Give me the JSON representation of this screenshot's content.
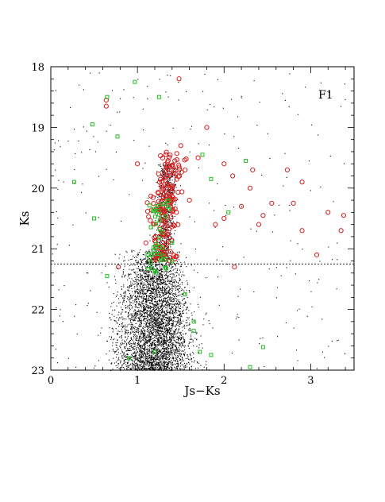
{
  "chart_data": {
    "type": "scatter",
    "title": "",
    "panel_label": "F1",
    "xlabel": "Js−Ks",
    "ylabel": "Ks",
    "xlim": [
      0,
      3.5
    ],
    "ylim": [
      23,
      18
    ],
    "y_inverted": true,
    "x_ticks": [
      0,
      1,
      2,
      3
    ],
    "y_ticks": [
      18,
      19,
      20,
      21,
      22,
      23
    ],
    "x_tick_labels": [
      "0",
      "1",
      "2",
      "3"
    ],
    "y_tick_labels": [
      "18",
      "19",
      "20",
      "21",
      "22",
      "23"
    ],
    "grid": false,
    "legend": "none",
    "reference_line": {
      "style": "dotted",
      "y": 21.25
    },
    "colors": {
      "field_stars": "#000000",
      "red_circles": "#d42020",
      "green_squares": "#22c022",
      "axes": "#000000"
    },
    "series": [
      {
        "marker": "dot",
        "color": "#000000",
        "description_from_plot": "dense cloud of black points centered near Js-Ks 1.2, Ks 22, spread roughly Js-Ks 0.1 to 2.5 and Ks 21 to 23, plus a narrow plume rising to Ks 19.5",
        "points": [
          [
            1.0,
            18.2
          ],
          [
            1.25,
            18.2
          ],
          [
            0.45,
            18.1
          ],
          [
            1.75,
            18.4
          ],
          [
            0.95,
            18.5
          ],
          [
            2.0,
            19.1
          ],
          [
            0.25,
            20.6
          ],
          [
            0.4,
            20.4
          ],
          [
            0.55,
            19.8
          ],
          [
            0.75,
            19.4
          ],
          [
            0.9,
            20.1
          ],
          [
            2.2,
            20.3
          ],
          [
            2.6,
            21.3
          ],
          [
            2.9,
            21.0
          ],
          [
            3.1,
            21.2
          ],
          [
            3.3,
            20.9
          ],
          [
            0.15,
            21.6
          ],
          [
            0.1,
            22.1
          ],
          [
            0.2,
            22.8
          ],
          [
            0.3,
            22.4
          ],
          [
            2.6,
            21.8
          ],
          [
            2.8,
            22.3
          ],
          [
            3.0,
            21.7
          ],
          [
            3.2,
            22.6
          ]
        ]
      },
      {
        "marker": "open-circle",
        "color": "#d42020",
        "points": [
          [
            1.48,
            18.2
          ],
          [
            0.64,
            18.55
          ],
          [
            0.64,
            18.65
          ],
          [
            1.8,
            19.0
          ],
          [
            1.0,
            19.6
          ],
          [
            2.33,
            19.7
          ],
          [
            2.73,
            19.7
          ],
          [
            2.9,
            19.9
          ],
          [
            2.1,
            19.8
          ],
          [
            2.0,
            19.6
          ],
          [
            2.3,
            20.0
          ],
          [
            2.2,
            20.3
          ],
          [
            2.55,
            20.25
          ],
          [
            2.8,
            20.25
          ],
          [
            2.45,
            20.45
          ],
          [
            2.4,
            20.6
          ],
          [
            2.0,
            20.5
          ],
          [
            1.9,
            20.6
          ],
          [
            3.2,
            20.4
          ],
          [
            3.38,
            20.45
          ],
          [
            3.35,
            20.7
          ],
          [
            2.9,
            20.7
          ],
          [
            3.07,
            21.1
          ],
          [
            2.12,
            21.3
          ],
          [
            0.78,
            21.3
          ],
          [
            1.5,
            19.3
          ],
          [
            1.7,
            19.5
          ],
          [
            1.55,
            19.7
          ],
          [
            1.6,
            20.2
          ],
          [
            1.45,
            20.4
          ]
        ]
      },
      {
        "marker": "open-square",
        "color": "#22c022",
        "points": [
          [
            0.97,
            18.25
          ],
          [
            0.65,
            18.5
          ],
          [
            1.25,
            18.5
          ],
          [
            0.48,
            18.95
          ],
          [
            0.77,
            19.15
          ],
          [
            0.27,
            19.9
          ],
          [
            0.5,
            20.5
          ],
          [
            1.75,
            19.45
          ],
          [
            2.25,
            19.55
          ],
          [
            1.85,
            19.85
          ],
          [
            2.05,
            20.4
          ],
          [
            1.4,
            20.9
          ],
          [
            0.65,
            21.45
          ],
          [
            1.55,
            21.75
          ],
          [
            1.65,
            22.2
          ],
          [
            1.65,
            22.35
          ],
          [
            1.72,
            22.7
          ],
          [
            1.85,
            22.75
          ],
          [
            2.45,
            22.62
          ],
          [
            2.3,
            22.95
          ],
          [
            0.9,
            22.8
          ],
          [
            1.2,
            22.7
          ]
        ]
      }
    ]
  }
}
